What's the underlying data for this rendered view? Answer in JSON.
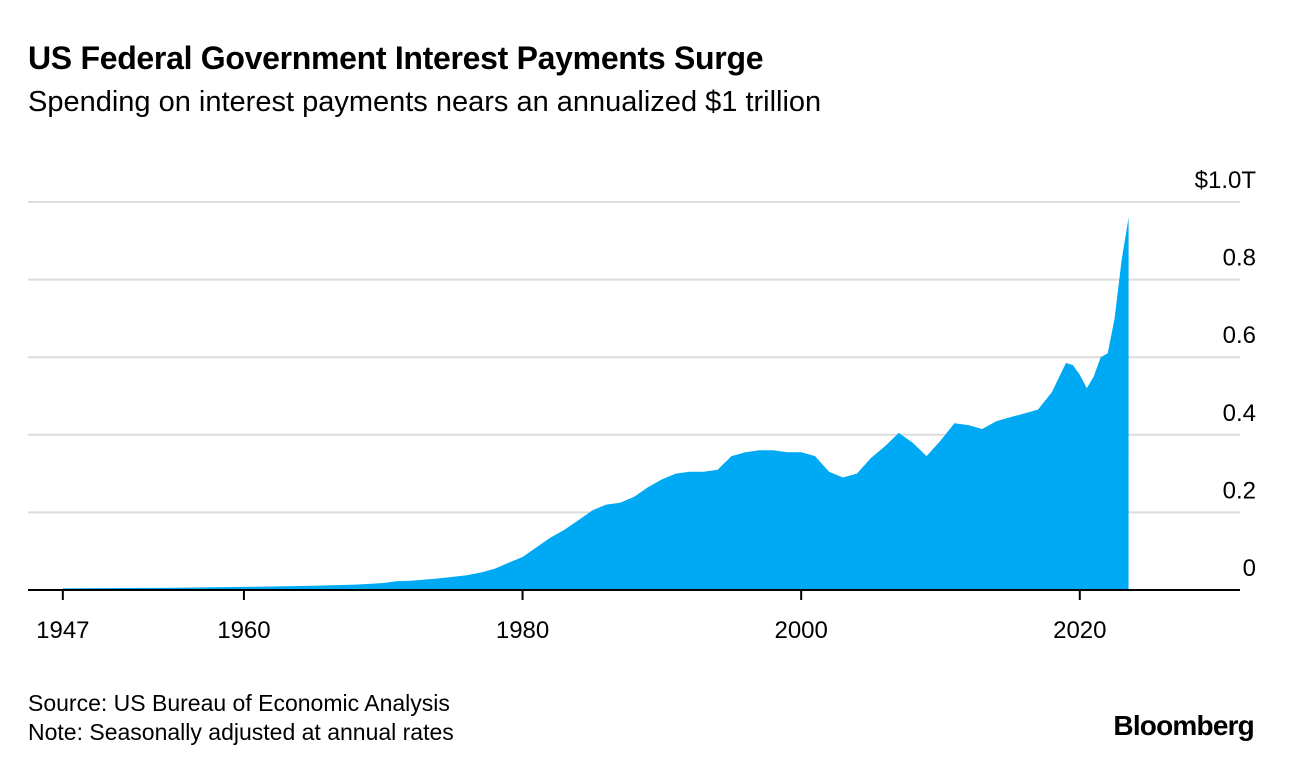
{
  "header": {
    "title": "US Federal Government Interest Payments Surge",
    "subtitle": "Spending on interest payments nears an annualized $1 trillion"
  },
  "footer": {
    "source": "Source: US Bureau of Economic Analysis",
    "note": "Note: Seasonally adjusted at annual rates",
    "brand": "Bloomberg"
  },
  "chart_data": {
    "type": "area",
    "title": "US Federal Government Interest Payments Surge",
    "subtitle": "Spending on interest payments nears an annualized $1 trillion",
    "xlabel": "",
    "ylabel": "",
    "unit": "trillions of US dollars, seasonally adjusted annual rate",
    "color": "#00a9f4",
    "x_ticks": [
      {
        "value": 1947,
        "label": "1947"
      },
      {
        "value": 1960,
        "label": "1960"
      },
      {
        "value": 1980,
        "label": "1980"
      },
      {
        "value": 2000,
        "label": "2000"
      },
      {
        "value": 2020,
        "label": "2020"
      }
    ],
    "y_ticks": [
      {
        "value": 0,
        "label": "0"
      },
      {
        "value": 0.2,
        "label": "0.2"
      },
      {
        "value": 0.4,
        "label": "0.4"
      },
      {
        "value": 0.6,
        "label": "0.6"
      },
      {
        "value": 0.8,
        "label": "0.8"
      },
      {
        "value": 1.0,
        "label": "$1.0T"
      }
    ],
    "xlim": [
      1944.5,
      2031.5
    ],
    "ylim": [
      0,
      1.0
    ],
    "grid": true,
    "y_axis_position": "right",
    "series": [
      {
        "points": [
          [
            1947,
            0.004
          ],
          [
            1950,
            0.005
          ],
          [
            1955,
            0.006
          ],
          [
            1960,
            0.008
          ],
          [
            1962,
            0.009
          ],
          [
            1965,
            0.011
          ],
          [
            1968,
            0.014
          ],
          [
            1970,
            0.018
          ],
          [
            1971,
            0.023
          ],
          [
            1972,
            0.024
          ],
          [
            1974,
            0.03
          ],
          [
            1976,
            0.038
          ],
          [
            1977,
            0.045
          ],
          [
            1978,
            0.055
          ],
          [
            1979,
            0.07
          ],
          [
            1980,
            0.085
          ],
          [
            1981,
            0.11
          ],
          [
            1982,
            0.135
          ],
          [
            1983,
            0.155
          ],
          [
            1984,
            0.18
          ],
          [
            1985,
            0.205
          ],
          [
            1986,
            0.22
          ],
          [
            1987,
            0.225
          ],
          [
            1988,
            0.24
          ],
          [
            1989,
            0.265
          ],
          [
            1990,
            0.285
          ],
          [
            1991,
            0.3
          ],
          [
            1992,
            0.305
          ],
          [
            1993,
            0.305
          ],
          [
            1994,
            0.31
          ],
          [
            1995,
            0.345
          ],
          [
            1996,
            0.355
          ],
          [
            1997,
            0.36
          ],
          [
            1998,
            0.36
          ],
          [
            1999,
            0.355
          ],
          [
            2000,
            0.355
          ],
          [
            2001,
            0.345
          ],
          [
            2002,
            0.305
          ],
          [
            2003,
            0.29
          ],
          [
            2004,
            0.3
          ],
          [
            2005,
            0.34
          ],
          [
            2006,
            0.37
          ],
          [
            2007,
            0.405
          ],
          [
            2008,
            0.38
          ],
          [
            2009,
            0.345
          ],
          [
            2010,
            0.385
          ],
          [
            2011,
            0.43
          ],
          [
            2012,
            0.425
          ],
          [
            2013,
            0.415
          ],
          [
            2014,
            0.435
          ],
          [
            2015,
            0.445
          ],
          [
            2016,
            0.455
          ],
          [
            2017,
            0.465
          ],
          [
            2018,
            0.51
          ],
          [
            2019,
            0.585
          ],
          [
            2019.5,
            0.58
          ],
          [
            2020,
            0.555
          ],
          [
            2020.5,
            0.52
          ],
          [
            2021,
            0.55
          ],
          [
            2021.5,
            0.6
          ],
          [
            2022,
            0.61
          ],
          [
            2022.5,
            0.7
          ],
          [
            2023,
            0.85
          ],
          [
            2023.5,
            0.96
          ]
        ]
      }
    ]
  }
}
